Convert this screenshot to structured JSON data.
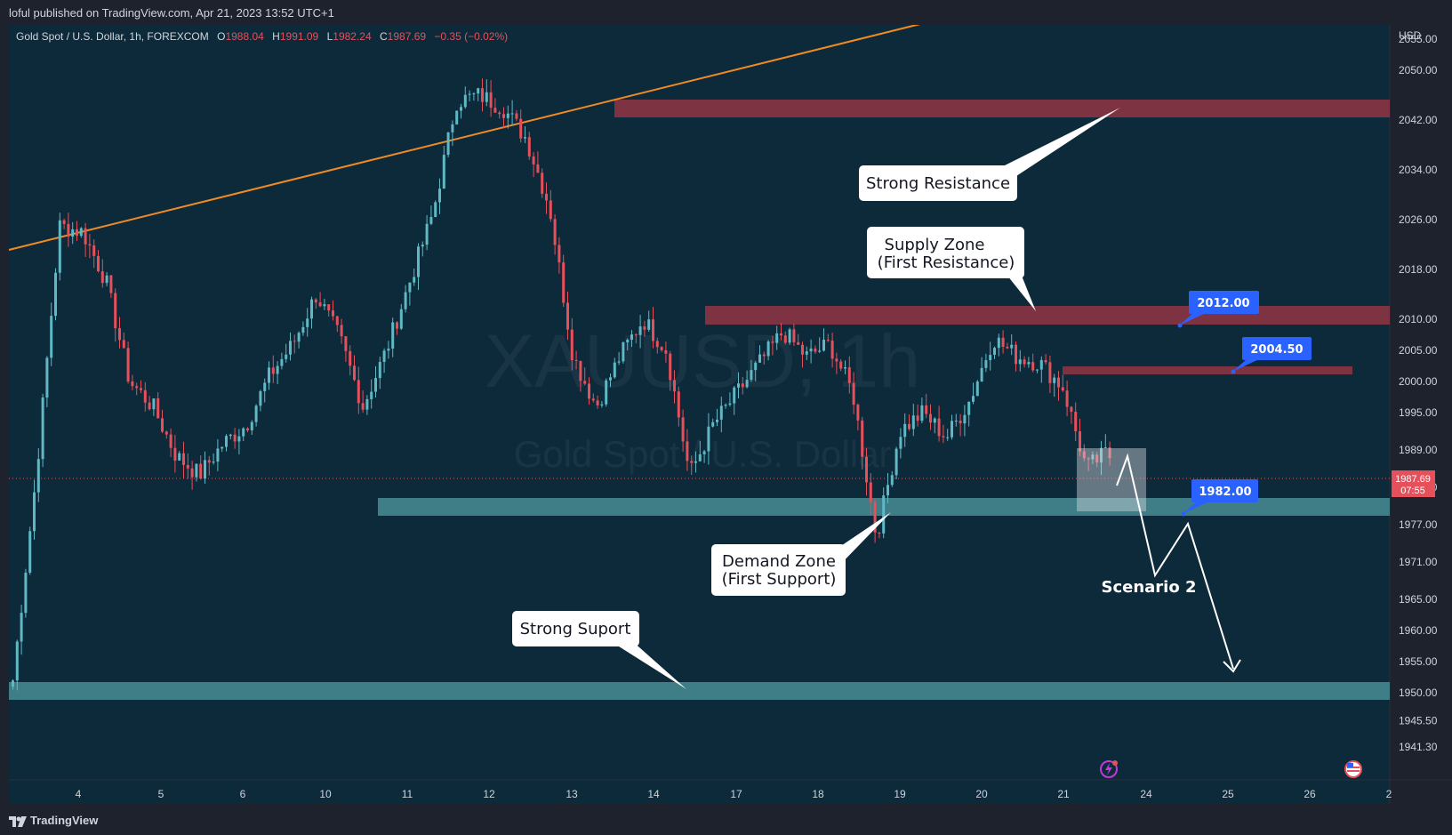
{
  "header": {
    "published": "loful published on TradingView.com, Apr 21, 2023 13:52 UTC+1"
  },
  "legend": {
    "title": "Gold Spot / U.S. Dollar, 1h, FOREXCOM",
    "o_label": "O",
    "o_value": "1988.04",
    "h_label": "H",
    "h_value": "1991.09",
    "l_label": "L",
    "l_value": "1982.24",
    "c_label": "C",
    "c_value": "1987.69",
    "change": "−0.35 (−0.02%)"
  },
  "watermark": {
    "symbol": "XAUUSD, 1h",
    "name": "Gold Spot / U.S. Dollar"
  },
  "price_axis": {
    "currency": "USD",
    "current_price": "1987.69",
    "countdown": "07:55"
  },
  "annotations": {
    "strong_resistance": "Strong Resistance",
    "supply_line1": "Supply Zone",
    "supply_line2": "(First Resistance)",
    "demand_line1": "Demand Zone",
    "demand_line2": "(First Support)",
    "strong_support": "Strong Suport",
    "scenario": "Scenario 2",
    "tag_2012": "2012.00",
    "tag_2004": "2004.50",
    "tag_1982": "1982.00"
  },
  "footer": {
    "brand": "TradingView"
  },
  "colors": {
    "background": "#0d2a3b",
    "up": "#5fb8c4",
    "down": "#e5505a",
    "resistance_zone": "#7d3342",
    "support_zone": "#3f7e86",
    "trendline": "#f08a24",
    "tag": "#2962ff"
  },
  "chart_data": {
    "type": "candlestick",
    "symbol": "XAUUSD",
    "timeframe": "1h",
    "x_tick_labels": [
      "4",
      "5",
      "6",
      "10",
      "11",
      "12",
      "13",
      "14",
      "17",
      "18",
      "19",
      "20",
      "21",
      "24",
      "25",
      "26",
      "2"
    ],
    "y_tick_labels": [
      "2055.00",
      "2050.00",
      "2042.00",
      "2034.00",
      "2026.00",
      "2018.00",
      "2010.00",
      "2005.00",
      "2000.00",
      "1995.00",
      "1989.00",
      "1983.00",
      "1977.00",
      "1971.00",
      "1965.00",
      "1960.00",
      "1955.00",
      "1950.00",
      "1945.50",
      "1941.30"
    ],
    "ylim": [
      1939.0,
      2058.0
    ],
    "last_close": 1987.69,
    "zones": [
      {
        "name": "Strong Resistance",
        "low": 2047.0,
        "high": 2050.0
      },
      {
        "name": "Supply Zone (First Resistance)",
        "low": 2012.5,
        "high": 2015.5
      },
      {
        "name": "2004.50 level",
        "low": 2004.4,
        "high": 2005.6
      },
      {
        "name": "Demand Zone (First Support)",
        "low": 1982.0,
        "high": 1985.0
      },
      {
        "name": "Strong Suport",
        "low": 1952.5,
        "high": 1955.3
      }
    ],
    "price_tags": [
      2012.0,
      2004.5,
      1982.0
    ],
    "trendline": {
      "from": {
        "day": "3",
        "price": 2026.0
      },
      "to": {
        "day": "21",
        "price": 2070.0
      }
    },
    "scenario_path_prices": [
      1989.5,
      1992.0,
      1978.0,
      1982.5,
      1952.0
    ],
    "anchor_prices": [
      1952,
      1985,
      2025,
      2024,
      2016,
      2000,
      1996,
      1988,
      1985,
      1990,
      1993,
      2001,
      2006,
      2014,
      2007,
      1996,
      2005,
      2016,
      2027,
      2045,
      2046,
      2044,
      2039,
      2028,
      2004,
      1996,
      2004,
      2010,
      2005,
      1985,
      1993,
      1998,
      2003,
      2008,
      2004,
      2006,
      1998,
      1975,
      1992,
      1995,
      1991,
      1997,
      2007,
      2004,
      2003,
      1999,
      1986,
      1989
    ]
  }
}
